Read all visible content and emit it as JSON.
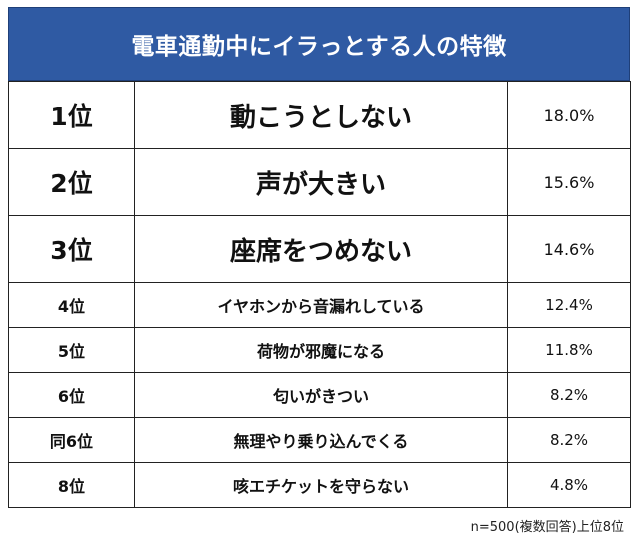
{
  "title": "電車通勤中にイラっとする人の特徴",
  "colors": {
    "header_bg": "#2f5aa3",
    "header_text": "#ffffff",
    "grid": "#222222"
  },
  "rows": [
    {
      "rank": "1位",
      "label": "動こうとしない",
      "pct": "18.0%"
    },
    {
      "rank": "2位",
      "label": "声が大きい",
      "pct": "15.6%"
    },
    {
      "rank": "3位",
      "label": "座席をつめない",
      "pct": "14.6%"
    },
    {
      "rank": "4位",
      "label": "イヤホンから音漏れしている",
      "pct": "12.4%"
    },
    {
      "rank": "5位",
      "label": "荷物が邪魔になる",
      "pct": "11.8%"
    },
    {
      "rank": "6位",
      "label": "匂いがきつい",
      "pct": "8.2%"
    },
    {
      "rank": "同6位",
      "label": "無理やり乗り込んでくる",
      "pct": "8.2%"
    },
    {
      "rank": "8位",
      "label": "咳エチケットを守らない",
      "pct": "4.8%"
    }
  ],
  "footnote": "n=500(複数回答)上位8位"
}
